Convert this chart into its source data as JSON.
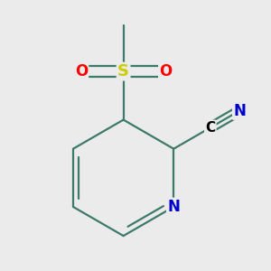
{
  "bg_color": "#ebebeb",
  "bond_color": "#3d7a6a",
  "bond_width": 1.6,
  "atom_colors": {
    "S": "#cccc00",
    "O": "#ff0000",
    "N": "#0000cc",
    "C": "#000000"
  },
  "font_size_atom": 11,
  "fig_size": [
    3.0,
    3.0
  ],
  "dpi": 100
}
